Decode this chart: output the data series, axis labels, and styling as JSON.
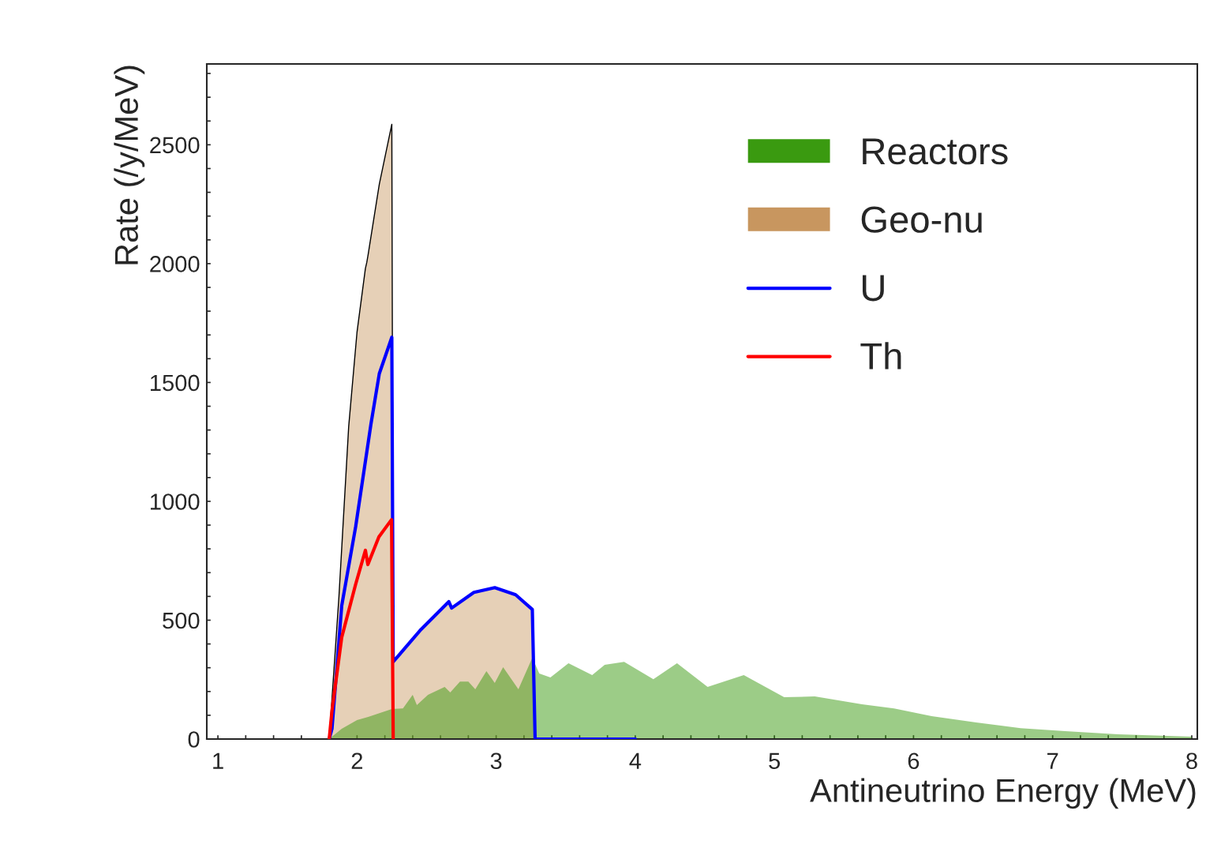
{
  "chart_data": {
    "type": "area",
    "xlabel": "Antineutrino Energy (MeV)",
    "ylabel": "Rate (/y/MeV)",
    "xlim": [
      0.92,
      8.04
    ],
    "ylim": [
      0,
      2840
    ],
    "xticks": [
      1,
      {
        "value": 1.2,
        "label": null
      },
      {
        "value": 1.4,
        "label": null
      },
      {
        "value": 1.6,
        "label": null
      },
      {
        "value": 1.8,
        "label": null
      },
      2,
      {
        "value": 2.2,
        "label": null
      },
      {
        "value": 2.4,
        "label": null
      },
      {
        "value": 2.6,
        "label": null
      },
      {
        "value": 2.8,
        "label": null
      },
      3,
      {
        "value": 3.2,
        "label": null
      },
      {
        "value": 3.4,
        "label": null
      },
      {
        "value": 3.6,
        "label": null
      },
      {
        "value": 3.8,
        "label": null
      },
      4,
      {
        "value": 4.2,
        "label": null
      },
      {
        "value": 4.4,
        "label": null
      },
      {
        "value": 4.6,
        "label": null
      },
      {
        "value": 4.8,
        "label": null
      },
      5,
      {
        "value": 5.2,
        "label": null
      },
      {
        "value": 5.4,
        "label": null
      },
      {
        "value": 5.6,
        "label": null
      },
      {
        "value": 5.8,
        "label": null
      },
      6,
      {
        "value": 6.2,
        "label": null
      },
      {
        "value": 6.4,
        "label": null
      },
      {
        "value": 6.6,
        "label": null
      },
      {
        "value": 6.8,
        "label": null
      },
      7,
      {
        "value": 7.2,
        "label": null
      },
      {
        "value": 7.4,
        "label": null
      },
      {
        "value": 7.6,
        "label": null
      },
      {
        "value": 7.8,
        "label": null
      },
      8
    ],
    "yticks": [
      0,
      {
        "value": 100,
        "label": null
      },
      {
        "value": 200,
        "label": null
      },
      {
        "value": 300,
        "label": null
      },
      {
        "value": 400,
        "label": null
      },
      500,
      {
        "value": 600,
        "label": null
      },
      {
        "value": 700,
        "label": null
      },
      {
        "value": 800,
        "label": null
      },
      {
        "value": 900,
        "label": null
      },
      1000,
      {
        "value": 1100,
        "label": null
      },
      {
        "value": 1200,
        "label": null
      },
      {
        "value": 1300,
        "label": null
      },
      {
        "value": 1400,
        "label": null
      },
      1500,
      {
        "value": 1600,
        "label": null
      },
      {
        "value": 1700,
        "label": null
      },
      {
        "value": 1800,
        "label": null
      },
      {
        "value": 1900,
        "label": null
      },
      2000,
      {
        "value": 2100,
        "label": null
      },
      {
        "value": 2200,
        "label": null
      },
      {
        "value": 2300,
        "label": null
      },
      {
        "value": 2400,
        "label": null
      },
      2500,
      {
        "value": 2600,
        "label": null
      },
      {
        "value": 2700,
        "label": null
      },
      {
        "value": 2800,
        "label": null
      }
    ],
    "grid": false,
    "legend": "top right",
    "series": [
      {
        "name": "Reactors",
        "color": "#3a9a10",
        "x": [
          1.8,
          1.82,
          1.89,
          2.0,
          2.08,
          2.25,
          2.33,
          2.4,
          2.43,
          2.51,
          2.63,
          2.67,
          2.74,
          2.8,
          2.85,
          2.93,
          2.99,
          3.05,
          3.16,
          3.26,
          3.31,
          3.39,
          3.52,
          3.69,
          3.78,
          3.92,
          4.13,
          4.3,
          4.52,
          4.78,
          5.07,
          5.29,
          5.63,
          5.86,
          6.13,
          6.45,
          6.77,
          7.09,
          7.47,
          8.0
        ],
        "values": [
          0,
          10,
          43,
          80,
          93,
          126,
          129,
          186,
          143,
          186,
          219,
          196,
          242,
          242,
          209,
          286,
          236,
          302,
          209,
          342,
          276,
          259,
          319,
          269,
          312,
          325,
          252,
          319,
          219,
          269,
          176,
          179,
          146,
          129,
          96,
          70,
          46,
          33,
          20,
          10
        ]
      },
      {
        "name": "Geo-nu",
        "color": "#c8965f",
        "x": [
          1.8,
          1.87,
          1.94,
          2.0,
          2.06,
          2.07,
          2.08,
          2.16,
          2.25,
          2.26,
          2.46,
          2.66,
          2.68,
          2.84,
          2.99,
          3.14,
          3.26,
          3.28
        ],
        "values": [
          0,
          600,
          1315,
          1713,
          1979,
          2005,
          2039,
          2334,
          2586,
          325,
          461,
          578,
          551,
          617,
          637,
          607,
          545,
          0
        ]
      },
      {
        "name": "U",
        "type": "line",
        "color": "#0000ff",
        "x": [
          1.8,
          1.82,
          1.89,
          1.99,
          2.1,
          2.16,
          2.25,
          2.26,
          2.46,
          2.66,
          2.68,
          2.84,
          2.99,
          3.14,
          3.26,
          3.28,
          4.0
        ],
        "values": [
          0,
          43,
          561,
          893,
          1325,
          1537,
          1690,
          325,
          461,
          578,
          551,
          617,
          637,
          607,
          545,
          0,
          0
        ]
      },
      {
        "name": "Th",
        "type": "line",
        "color": "#ff0000",
        "x": [
          1.8,
          1.82,
          1.89,
          1.99,
          2.06,
          2.078,
          2.157,
          2.248,
          2.26
        ],
        "values": [
          0,
          120,
          428,
          651,
          794,
          734,
          850,
          923,
          0
        ]
      }
    ]
  }
}
